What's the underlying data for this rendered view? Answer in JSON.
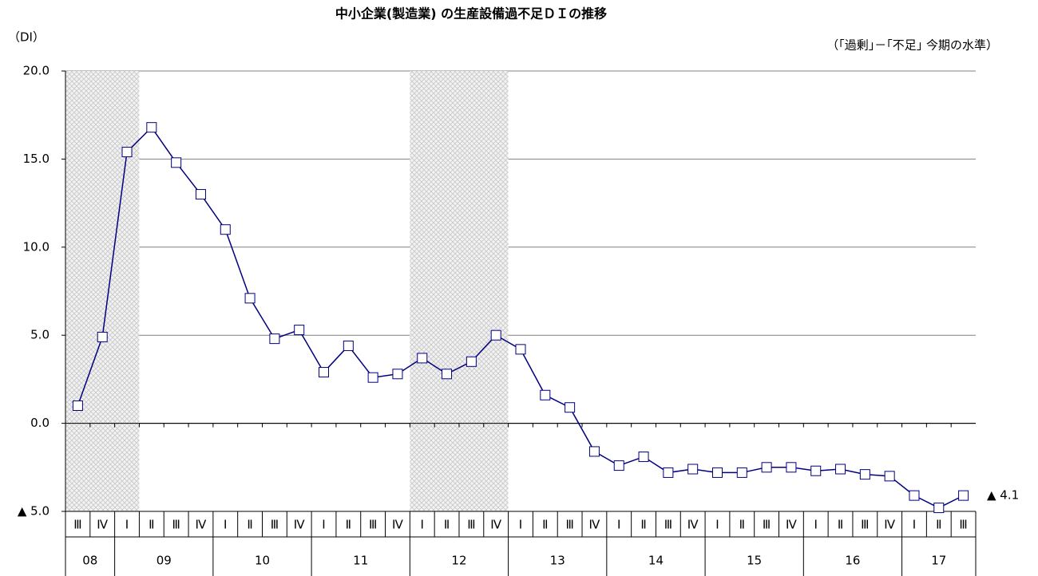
{
  "chart_data": {
    "type": "line",
    "title": "中小企業(製造業) の生産設備過不足ＤＩの推移",
    "y_axis_label": "（DI）",
    "note": "（｢過剰｣－｢不足｣ 今期の水準）",
    "categories": [
      "Ⅲ",
      "Ⅳ",
      "Ⅰ",
      "Ⅱ",
      "Ⅲ",
      "Ⅳ",
      "Ⅰ",
      "Ⅱ",
      "Ⅲ",
      "Ⅳ",
      "Ⅰ",
      "Ⅱ",
      "Ⅲ",
      "Ⅳ",
      "Ⅰ",
      "Ⅱ",
      "Ⅲ",
      "Ⅳ",
      "Ⅰ",
      "Ⅱ",
      "Ⅲ",
      "Ⅳ",
      "Ⅰ",
      "Ⅱ",
      "Ⅲ",
      "Ⅳ",
      "Ⅰ",
      "Ⅱ",
      "Ⅲ",
      "Ⅳ",
      "Ⅰ",
      "Ⅱ",
      "Ⅲ",
      "Ⅳ",
      "Ⅰ",
      "Ⅱ",
      "Ⅲ"
    ],
    "groups": [
      {
        "label": "08",
        "size": 2
      },
      {
        "label": "09",
        "size": 4
      },
      {
        "label": "10",
        "size": 4
      },
      {
        "label": "11",
        "size": 4
      },
      {
        "label": "12",
        "size": 4
      },
      {
        "label": "13",
        "size": 4
      },
      {
        "label": "14",
        "size": 4
      },
      {
        "label": "15",
        "size": 4
      },
      {
        "label": "16",
        "size": 4
      },
      {
        "label": "17",
        "size": 3
      }
    ],
    "series": [
      {
        "color": "#000080",
        "values": [
          1.0,
          4.9,
          15.4,
          16.8,
          14.8,
          13.0,
          11.0,
          7.1,
          4.8,
          5.3,
          2.9,
          4.4,
          2.6,
          2.8,
          3.7,
          2.8,
          3.5,
          5.0,
          4.2,
          1.6,
          0.9,
          -1.6,
          -2.4,
          -1.9,
          -2.8,
          -2.6,
          -2.8,
          -2.8,
          -2.5,
          -2.5,
          -2.7,
          -2.6,
          -2.9,
          -3.0,
          -4.1,
          -4.8,
          -4.1
        ],
        "value_labels": [
          null,
          null,
          null,
          null,
          null,
          null,
          null,
          null,
          null,
          null,
          null,
          null,
          null,
          null,
          null,
          null,
          null,
          null,
          null,
          null,
          null,
          null,
          null,
          null,
          null,
          null,
          null,
          null,
          null,
          null,
          null,
          null,
          null,
          null,
          null,
          null,
          "▲ 4.1"
        ]
      }
    ],
    "shaded": [
      [
        0,
        2
      ],
      [
        14,
        17
      ]
    ],
    "ylim": [
      -5,
      20
    ],
    "yticks": [
      {
        "value": 20,
        "label": "20.0"
      },
      {
        "value": 15,
        "label": "15.0"
      },
      {
        "value": 10,
        "label": "10.0"
      },
      {
        "value": 5,
        "label": "5.0"
      },
      {
        "value": 0,
        "label": "0.0"
      },
      {
        "value": -5,
        "label": "▲ 5.0"
      }
    ],
    "grid": true
  }
}
